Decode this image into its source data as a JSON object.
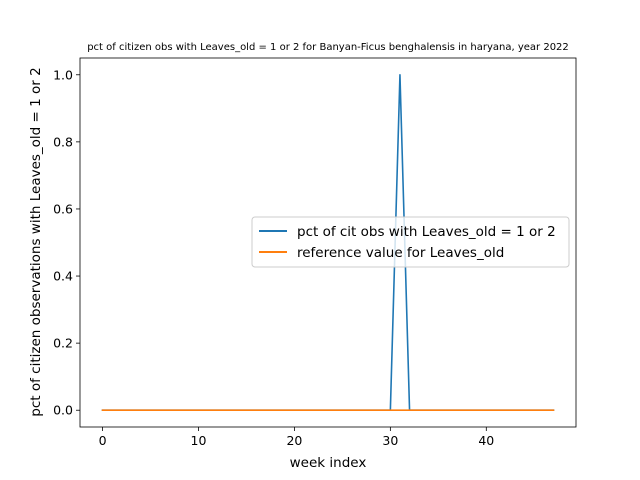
{
  "chart_data": {
    "type": "line",
    "title": "pct of citizen obs with Leaves_old = 1 or 2 for Banyan-Ficus benghalensis in haryana, year 2022",
    "xlabel": "week index",
    "ylabel": "pct of citizen observations with Leaves_old = 1 or 2",
    "xlim": [
      -2.35,
      49.35
    ],
    "ylim": [
      -0.05,
      1.05
    ],
    "xticks": [
      0,
      10,
      20,
      30,
      40
    ],
    "xtick_labels": [
      "0",
      "10",
      "20",
      "30",
      "40"
    ],
    "yticks": [
      0.0,
      0.2,
      0.4,
      0.6,
      0.8,
      1.0
    ],
    "ytick_labels": [
      "0.0",
      "0.2",
      "0.4",
      "0.6",
      "0.8",
      "1.0"
    ],
    "grid": false,
    "legend_position": "center-right",
    "series": [
      {
        "name": "pct of cit obs with Leaves_old = 1 or 2",
        "color": "#1f77b4",
        "x": [
          0,
          1,
          2,
          3,
          4,
          5,
          6,
          7,
          8,
          9,
          10,
          11,
          12,
          13,
          14,
          15,
          16,
          17,
          18,
          19,
          20,
          21,
          22,
          23,
          24,
          25,
          26,
          27,
          28,
          29,
          30,
          31,
          32,
          33,
          34,
          35,
          36,
          37,
          38,
          39,
          40,
          41,
          42,
          43,
          44,
          45,
          46,
          47
        ],
        "values": [
          0,
          0,
          0,
          0,
          0,
          0,
          0,
          0,
          0,
          0,
          0,
          0,
          0,
          0,
          0,
          0,
          0,
          0,
          0,
          0,
          0,
          0,
          0,
          0,
          0,
          0,
          0,
          0,
          0,
          0,
          0,
          1,
          0,
          0,
          0,
          0,
          0,
          0,
          0,
          0,
          0,
          0,
          0,
          0,
          0,
          0,
          0,
          0
        ]
      },
      {
        "name": "reference value for Leaves_old",
        "color": "#ff7f0e",
        "x": [
          0,
          1,
          2,
          3,
          4,
          5,
          6,
          7,
          8,
          9,
          10,
          11,
          12,
          13,
          14,
          15,
          16,
          17,
          18,
          19,
          20,
          21,
          22,
          23,
          24,
          25,
          26,
          27,
          28,
          29,
          30,
          31,
          32,
          33,
          34,
          35,
          36,
          37,
          38,
          39,
          40,
          41,
          42,
          43,
          44,
          45,
          46,
          47
        ],
        "values": [
          0,
          0,
          0,
          0,
          0,
          0,
          0,
          0,
          0,
          0,
          0,
          0,
          0,
          0,
          0,
          0,
          0,
          0,
          0,
          0,
          0,
          0,
          0,
          0,
          0,
          0,
          0,
          0,
          0,
          0,
          0,
          0,
          0,
          0,
          0,
          0,
          0,
          0,
          0,
          0,
          0,
          0,
          0,
          0,
          0,
          0,
          0,
          0
        ]
      }
    ]
  }
}
